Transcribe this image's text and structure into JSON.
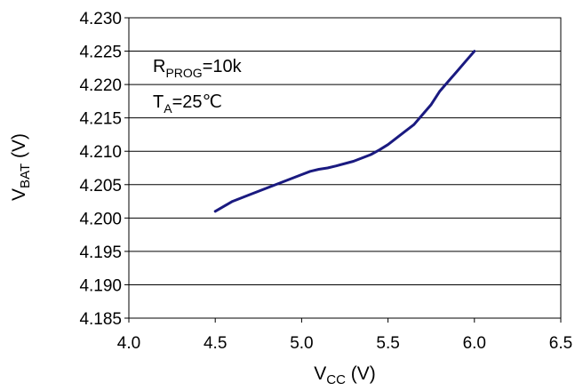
{
  "chart_data": {
    "type": "line",
    "title": "",
    "xlabel": {
      "main": "V",
      "sub": "CC",
      "unit": " (V)"
    },
    "ylabel": {
      "main": "V",
      "sub": "BAT",
      "unit": " (V)"
    },
    "xlim": [
      4.0,
      6.5
    ],
    "ylim": [
      4.185,
      4.23
    ],
    "x_ticks": [
      "4.0",
      "4.5",
      "5.0",
      "5.5",
      "6.0",
      "6.5"
    ],
    "y_ticks": [
      "4.230",
      "4.225",
      "4.220",
      "4.215",
      "4.210",
      "4.205",
      "4.200",
      "4.195",
      "4.190",
      "4.185"
    ],
    "grid": "horizontal",
    "series": [
      {
        "color": "#1a1a80",
        "x": [
          4.5,
          4.6,
          4.7,
          4.8,
          4.9,
          5.0,
          5.05,
          5.1,
          5.15,
          5.2,
          5.3,
          5.4,
          5.45,
          5.5,
          5.55,
          5.6,
          5.65,
          5.7,
          5.75,
          5.8,
          5.85,
          5.9,
          5.95,
          6.0
        ],
        "y": [
          4.201,
          4.2025,
          4.2035,
          4.2045,
          4.2055,
          4.2065,
          4.207,
          4.2073,
          4.2075,
          4.2078,
          4.2085,
          4.2095,
          4.2102,
          4.211,
          4.212,
          4.213,
          4.214,
          4.2155,
          4.217,
          4.219,
          4.2205,
          4.222,
          4.2235,
          4.225
        ]
      }
    ],
    "annotations": [
      {
        "main": "R",
        "sub": "PROG",
        "rest": "=10k"
      },
      {
        "main": "T",
        "sub": "A",
        "rest": "=25℃"
      }
    ]
  }
}
